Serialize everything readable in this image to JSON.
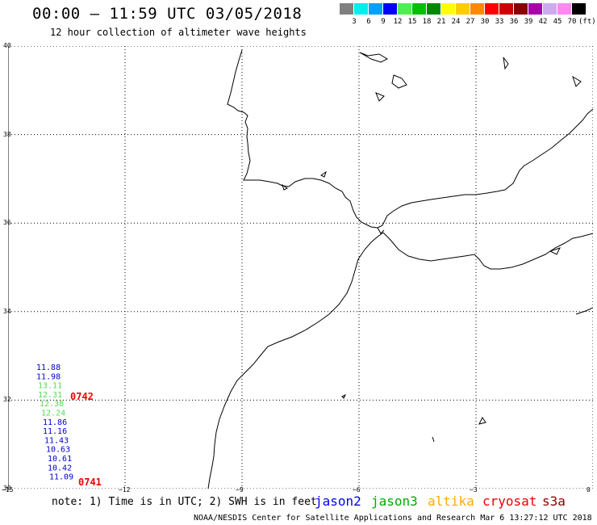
{
  "header": {
    "title": "00:00 – 11:59 UTC 03/05/2018",
    "subtitle": "12 hour collection of altimeter wave heights"
  },
  "legend": {
    "unit": "(ft)",
    "bins": [
      {
        "label": "3",
        "color": "#808080"
      },
      {
        "label": "6",
        "color": "#00eeee"
      },
      {
        "label": "9",
        "color": "#00a0ff"
      },
      {
        "label": "12",
        "color": "#0000ff"
      },
      {
        "label": "15",
        "color": "#50ee50"
      },
      {
        "label": "18",
        "color": "#00c000"
      },
      {
        "label": "21",
        "color": "#008800"
      },
      {
        "label": "24",
        "color": "#ffff00"
      },
      {
        "label": "27",
        "color": "#ffcc00"
      },
      {
        "label": "30",
        "color": "#ff8800"
      },
      {
        "label": "33",
        "color": "#ff0000"
      },
      {
        "label": "36",
        "color": "#cc0000"
      },
      {
        "label": "39",
        "color": "#880000"
      },
      {
        "label": "42",
        "color": "#aa00aa"
      },
      {
        "label": "45",
        "color": "#ccaaee"
      },
      {
        "label": "70",
        "color": "#ff88ee"
      },
      {
        "label": "",
        "color": "#000000"
      }
    ]
  },
  "map": {
    "lat_ticks": [
      "40",
      "38",
      "36",
      "34",
      "32",
      "30"
    ],
    "lon_ticks": [
      "−15",
      "−12",
      "−9",
      "−6",
      "−3",
      "0"
    ],
    "lat_range": [
      30,
      40
    ],
    "lon_range": [
      -15,
      0
    ]
  },
  "wave_heights": [
    {
      "value": "11.88",
      "color": "#0000cc"
    },
    {
      "value": "11.98",
      "color": "#0000cc"
    },
    {
      "value": "13.11",
      "color": "#50dd50"
    },
    {
      "value": "12.31",
      "color": "#50dd50"
    },
    {
      "value": "12.38",
      "color": "#50dd50"
    },
    {
      "value": "12.24",
      "color": "#50dd50"
    },
    {
      "value": "11.86",
      "color": "#0000cc"
    },
    {
      "value": "11.16",
      "color": "#0000cc"
    },
    {
      "value": "11.43",
      "color": "#0000cc"
    },
    {
      "value": "10.63",
      "color": "#0000cc"
    },
    {
      "value": "10.61",
      "color": "#0000cc"
    },
    {
      "value": "10.42",
      "color": "#0000cc"
    },
    {
      "value": "11.09",
      "color": "#0000cc"
    }
  ],
  "pass_times": [
    {
      "time": "0742",
      "color": "#ee0000"
    },
    {
      "time": "0741",
      "color": "#ee0000"
    }
  ],
  "footer": {
    "note": "note: 1) Time is in UTC; 2) SWH is in feet",
    "satellites": [
      {
        "name": "jason2",
        "color": "#0000ee"
      },
      {
        "name": "jason3",
        "color": "#00aa00"
      },
      {
        "name": "altika",
        "color": "#ffaa00"
      },
      {
        "name": "cryosat",
        "color": "#ee0000"
      },
      {
        "name": "s3a",
        "color": "#880000"
      }
    ],
    "credit": "NOAA/NESDIS Center for Satellite Applications and Research   Mar  6 13:27:12 UTC 2018"
  }
}
